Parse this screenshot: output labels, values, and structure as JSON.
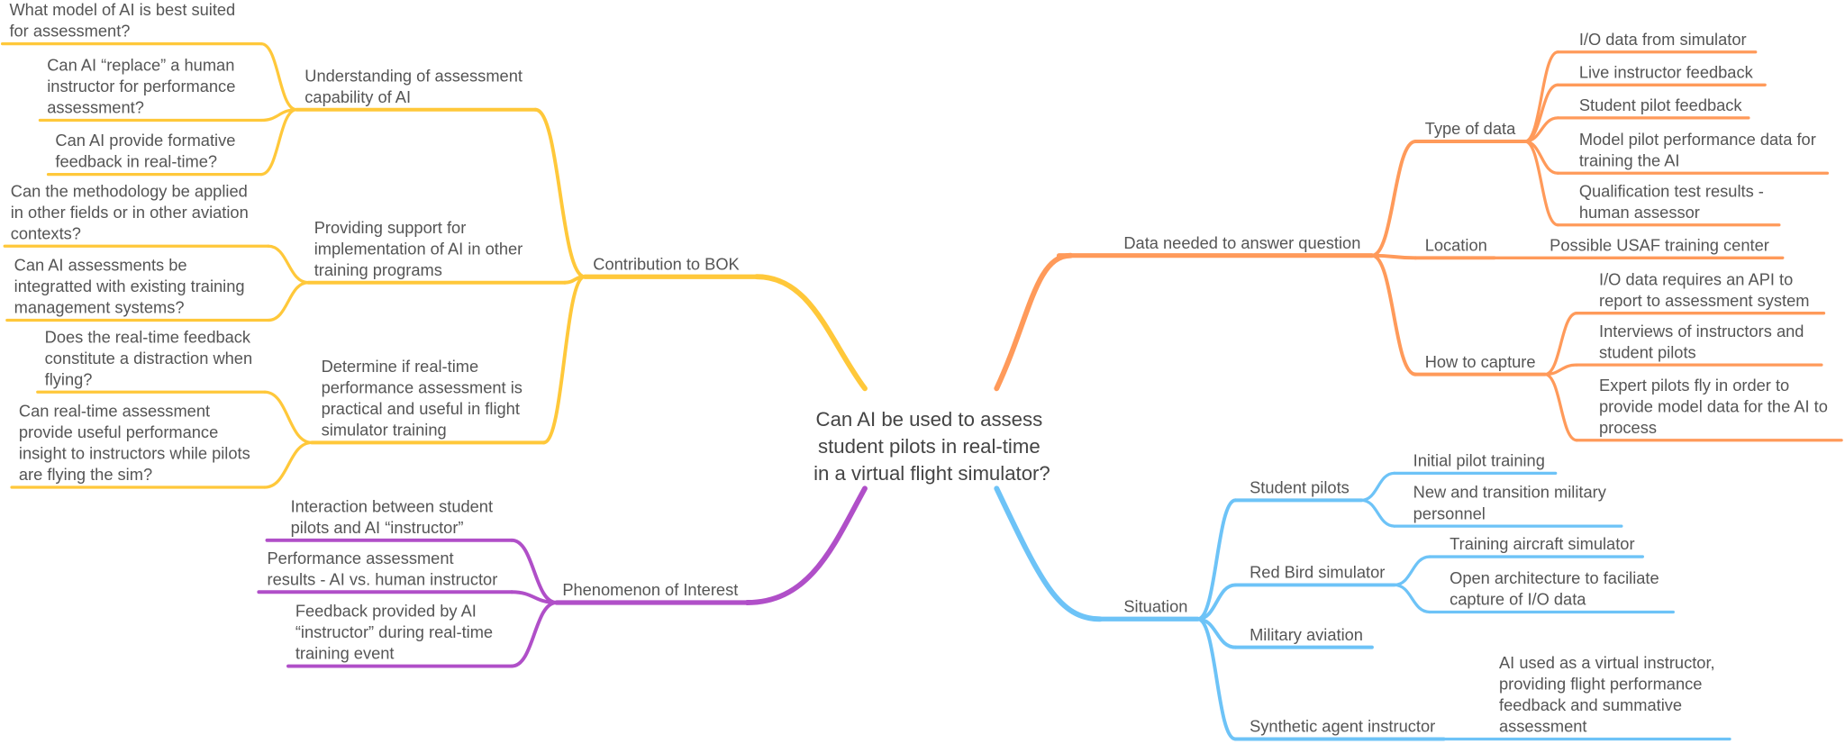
{
  "central_topic": {
    "lines": [
      "Can AI be used to assess",
      "student pilots in real-time",
      "in a virtual flight simulator?"
    ]
  },
  "colors": {
    "contribution": "#FFC83A",
    "phenomenon": "#B04FC8",
    "data": "#FF9A5A",
    "situation": "#6DC3F7"
  },
  "branches": [
    {
      "key": "contribution",
      "label": [
        "Contribution to BOK"
      ],
      "children": [
        {
          "label": [
            "Understanding of assessment",
            "capability of AI"
          ],
          "children": [
            {
              "label": [
                "What model of AI is best suited",
                "for assessment?"
              ]
            },
            {
              "label": [
                "Can AI “replace” a human",
                "instructor for performance",
                "assessment?"
              ]
            },
            {
              "label": [
                "Can AI provide formative",
                "feedback in real-time?"
              ]
            }
          ]
        },
        {
          "label": [
            "Providing support for",
            "implementation of AI in other",
            "training programs"
          ],
          "children": [
            {
              "label": [
                "Can the methodology be applied",
                "in other fields or in other aviation",
                "contexts?"
              ]
            },
            {
              "label": [
                "Can AI assessments be",
                "integratted with existing training",
                "management systems?"
              ]
            }
          ]
        },
        {
          "label": [
            "Determine if real-time",
            "performance assessment is",
            "practical and useful in flight",
            "simulator training"
          ],
          "children": [
            {
              "label": [
                "Does the real-time feedback",
                "constitute a distraction when",
                "flying?"
              ]
            },
            {
              "label": [
                "Can real-time assessment",
                "provide useful performance",
                "insight to instructors while pilots",
                "are flying the sim?"
              ]
            }
          ]
        }
      ]
    },
    {
      "key": "phenomenon",
      "label": [
        "Phenomenon of Interest"
      ],
      "children": [
        {
          "label": [
            "Interaction between student",
            "pilots and AI “instructor”"
          ]
        },
        {
          "label": [
            "Performance assessment",
            "results - AI vs. human instructor"
          ]
        },
        {
          "label": [
            "Feedback provided by AI",
            "“instructor” during real-time",
            "training event"
          ]
        }
      ]
    },
    {
      "key": "data",
      "label": [
        "Data needed to answer question"
      ],
      "children": [
        {
          "label": [
            "Type of data"
          ],
          "children": [
            {
              "label": [
                "I/O data from simulator"
              ]
            },
            {
              "label": [
                "Live instructor feedback"
              ]
            },
            {
              "label": [
                "Student pilot feedback"
              ]
            },
            {
              "label": [
                "Model pilot performance data for",
                "training the AI"
              ]
            },
            {
              "label": [
                "Qualification test results -",
                "human assessor"
              ]
            }
          ]
        },
        {
          "label": [
            "Location"
          ],
          "children": [
            {
              "label": [
                "Possible USAF training center"
              ]
            }
          ]
        },
        {
          "label": [
            "How to capture"
          ],
          "children": [
            {
              "label": [
                "I/O data requires an API to",
                "report to assessment system"
              ]
            },
            {
              "label": [
                "Interviews of instructors and",
                "student pilots"
              ]
            },
            {
              "label": [
                "Expert pilots fly in order to",
                "provide model data for the AI to",
                "process"
              ]
            }
          ]
        }
      ]
    },
    {
      "key": "situation",
      "label": [
        "Situation"
      ],
      "children": [
        {
          "label": [
            "Student pilots"
          ],
          "children": [
            {
              "label": [
                "Initial pilot training"
              ]
            },
            {
              "label": [
                "New and transition military",
                "personnel"
              ]
            }
          ]
        },
        {
          "label": [
            "Red Bird simulator"
          ],
          "children": [
            {
              "label": [
                "Training aircraft simulator"
              ]
            },
            {
              "label": [
                "Open architecture to faciliate",
                "capture of I/O data"
              ]
            }
          ]
        },
        {
          "label": [
            "Military aviation"
          ]
        },
        {
          "label": [
            "Synthetic agent instructor"
          ],
          "children": [
            {
              "label": [
                "AI used as a virtual instructor,",
                "providing flight performance",
                "feedback and summative",
                "assessment"
              ]
            }
          ]
        }
      ]
    }
  ]
}
